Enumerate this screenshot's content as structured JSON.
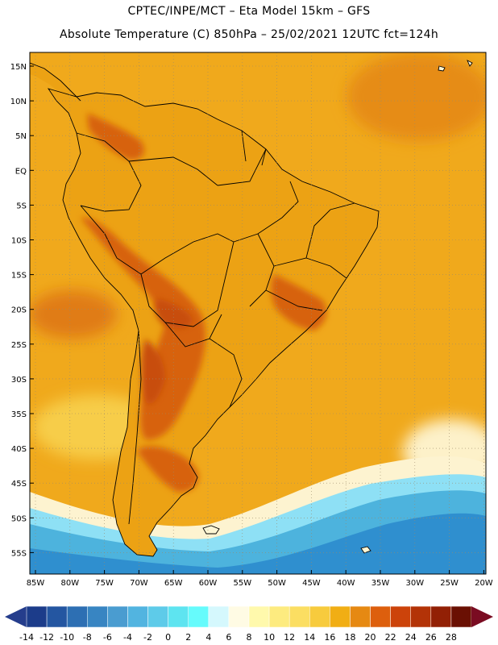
{
  "header": {
    "line1": "CPTEC/INPE/MCT –  Eta Model 15km – GFS",
    "line2": "Absolute Temperature (C) 850hPa – 25/02/2021 12UTC fct=124h"
  },
  "map": {
    "lat_labels": [
      "15N",
      "10N",
      "5N",
      "EQ",
      "5S",
      "10S",
      "15S",
      "20S",
      "25S",
      "30S",
      "35S",
      "40S",
      "45S",
      "50S",
      "55S"
    ],
    "lon_labels": [
      "85W",
      "80W",
      "75W",
      "70W",
      "65W",
      "60W",
      "55W",
      "50W",
      "45W",
      "40W",
      "35W",
      "30W",
      "25W",
      "20W"
    ],
    "ocean_color": "#f0a91c",
    "land_color": "#eca214",
    "hot_color": "#d7620b",
    "very_hot_color": "#c84d0a",
    "cold_colors": [
      "#2f8fcf",
      "#4db3dd",
      "#8ee0f5",
      "#fdf3d0"
    ]
  },
  "colorbar": {
    "labels": [
      "-14",
      "-12",
      "-10",
      "-8",
      "-6",
      "-4",
      "-2",
      "0",
      "2",
      "4",
      "6",
      "8",
      "10",
      "12",
      "14",
      "16",
      "18",
      "20",
      "22",
      "24",
      "26",
      "28"
    ],
    "colors": [
      "#1c3c8a",
      "#2456a1",
      "#2d6fb3",
      "#3885c2",
      "#4a9cd0",
      "#52b4e0",
      "#5ecbe9",
      "#5ee4f0",
      "#66fbfc",
      "#d5f8fd",
      "#fffbe4",
      "#fff9ac",
      "#fdeb7f",
      "#fbde62",
      "#f7cb3d",
      "#f1ae14",
      "#e68912",
      "#dd5f0d",
      "#cc430a",
      "#b33307",
      "#922005",
      "#6a1003"
    ],
    "low_arrow_color": "#253d8c",
    "high_arrow_color": "#7a0c22"
  }
}
